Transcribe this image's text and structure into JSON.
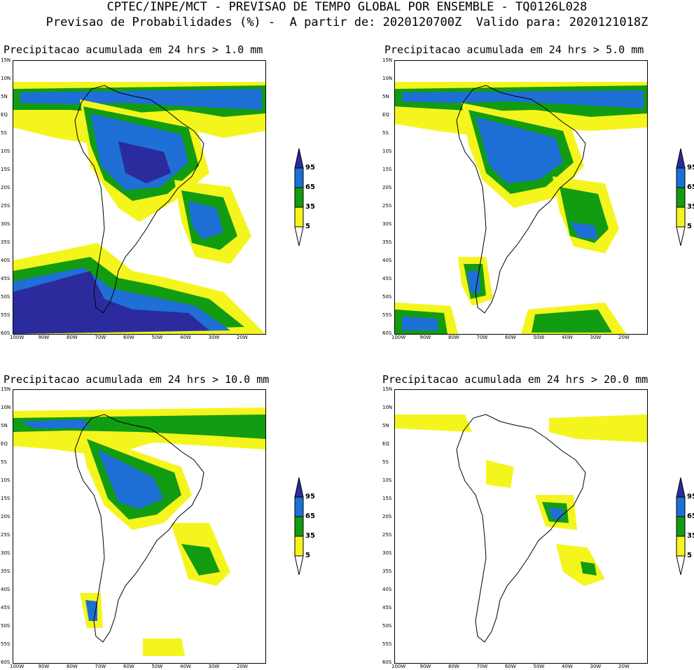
{
  "header": {
    "line1": "CPTEC/INPE/MCT - PREVISAO DE TEMPO GLOBAL POR ENSEMBLE - TQ0126L028",
    "line2": "Previsao de Probabilidades (%) -  A partir de: 2020120700Z  Valido para: 2020121018Z"
  },
  "panels": [
    {
      "title": "Precipitacao acumulada em 24 hrs > 1.0 mm"
    },
    {
      "title": "Precipitacao acumulada em 24 hrs > 5.0 mm"
    },
    {
      "title": "Precipitacao acumulada em 24 hrs > 10.0 mm"
    },
    {
      "title": "Precipitacao acumulada em 24 hrs > 20.0 mm"
    }
  ],
  "lat_labels": [
    "15N",
    "10N",
    "5N",
    "EQ",
    "5S",
    "10S",
    "15S",
    "20S",
    "25S",
    "30S",
    "35S",
    "40S",
    "45S",
    "50S",
    "55S",
    "60S"
  ],
  "lon_labels": [
    "100W",
    "90W",
    "80W",
    "70W",
    "60W",
    "50W",
    "40W",
    "30W",
    "20W"
  ],
  "colorbar": {
    "labels": [
      "95",
      "65",
      "35",
      "5"
    ],
    "colors": {
      "c95": "#2b2b9e",
      "c65": "#1e6fd6",
      "c35": "#129c12",
      "c5": "#f5f51e"
    }
  }
}
